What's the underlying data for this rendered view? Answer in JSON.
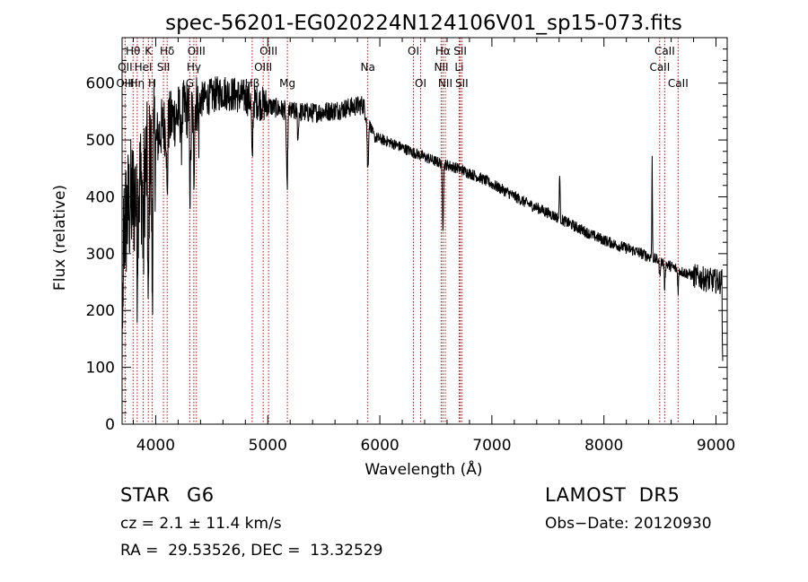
{
  "chart_data": {
    "type": "line",
    "title": "spec-56201-EG020224N124106V01_sp15-073.fits",
    "xlabel": "Wavelength (Å)",
    "ylabel": "Flux (relative)",
    "xlim": [
      3700,
      9100
    ],
    "ylim": [
      0,
      680
    ],
    "xticks": [
      4000,
      5000,
      6000,
      7000,
      8000,
      9000
    ],
    "yticks": [
      0,
      100,
      200,
      300,
      400,
      500,
      600
    ],
    "grid": false,
    "legend": "none",
    "continuum": [
      [
        3700,
        330
      ],
      [
        3760,
        380
      ],
      [
        3850,
        420
      ],
      [
        3950,
        470
      ],
      [
        4050,
        520
      ],
      [
        4200,
        545
      ],
      [
        4400,
        570
      ],
      [
        4600,
        585
      ],
      [
        4800,
        575
      ],
      [
        5000,
        560
      ],
      [
        5200,
        550
      ],
      [
        5400,
        548
      ],
      [
        5600,
        552
      ],
      [
        5850,
        562
      ],
      [
        5950,
        505
      ],
      [
        6100,
        495
      ],
      [
        6300,
        478
      ],
      [
        6500,
        462
      ],
      [
        6700,
        450
      ],
      [
        6900,
        433
      ],
      [
        7100,
        412
      ],
      [
        7300,
        390
      ],
      [
        7500,
        372
      ],
      [
        7700,
        352
      ],
      [
        7900,
        332
      ],
      [
        8100,
        316
      ],
      [
        8300,
        303
      ],
      [
        8500,
        287
      ],
      [
        8700,
        268
      ],
      [
        8900,
        255
      ],
      [
        9050,
        250
      ]
    ],
    "absorption_features": [
      {
        "x": 3835,
        "depth": 120,
        "width": 6
      },
      {
        "x": 3889,
        "depth": 150,
        "width": 6
      },
      {
        "x": 3934,
        "depth": 300,
        "width": 6
      },
      {
        "x": 3969,
        "depth": 240,
        "width": 6
      },
      {
        "x": 4102,
        "depth": 140,
        "width": 6
      },
      {
        "x": 4227,
        "depth": 60,
        "width": 5
      },
      {
        "x": 4308,
        "depth": 150,
        "width": 8
      },
      {
        "x": 4340,
        "depth": 120,
        "width": 7
      },
      {
        "x": 4384,
        "depth": 60,
        "width": 5
      },
      {
        "x": 4861,
        "depth": 120,
        "width": 7
      },
      {
        "x": 5172,
        "depth": 140,
        "width": 8
      },
      {
        "x": 5270,
        "depth": 50,
        "width": 6
      },
      {
        "x": 5893,
        "depth": 90,
        "width": 8
      },
      {
        "x": 6563,
        "depth": 110,
        "width": 7
      },
      {
        "x": 8498,
        "depth": 30,
        "width": 6
      },
      {
        "x": 8542,
        "depth": 40,
        "width": 6
      },
      {
        "x": 8662,
        "depth": 35,
        "width": 6
      }
    ],
    "emission_features": [
      {
        "x": 7605,
        "height": 85,
        "width": 5
      },
      {
        "x": 8430,
        "height": 175,
        "width": 4
      }
    ],
    "line_markers": [
      {
        "label": "Hθ",
        "x": 3798,
        "row": 0
      },
      {
        "label": "OII",
        "x": 3727,
        "row": 1
      },
      {
        "label": "OIII",
        "x": 3727,
        "row": 2
      },
      {
        "label": "Hη",
        "x": 3835,
        "row": 2
      },
      {
        "label": "HeI",
        "x": 3889,
        "row": 1
      },
      {
        "label": "K",
        "x": 3934,
        "row": 0
      },
      {
        "label": "H",
        "x": 3969,
        "row": 2
      },
      {
        "label": "SII",
        "x": 4069,
        "row": 1
      },
      {
        "label": "Hδ",
        "x": 4102,
        "row": 0
      },
      {
        "label": "OIII",
        "x": 4363,
        "row": 0
      },
      {
        "label": "Hγ",
        "x": 4340,
        "row": 1
      },
      {
        "label": "G",
        "x": 4304,
        "row": 2
      },
      {
        "label": "OIII",
        "x": 5007,
        "row": 0
      },
      {
        "label": "OIII",
        "x": 4959,
        "row": 1
      },
      {
        "label": "Hβ",
        "x": 4861,
        "row": 2
      },
      {
        "label": "Mg",
        "x": 5175,
        "row": 2
      },
      {
        "label": "Na",
        "x": 5893,
        "row": 1
      },
      {
        "label": "OI",
        "x": 6300,
        "row": 0
      },
      {
        "label": "OI",
        "x": 6364,
        "row": 2
      },
      {
        "label": "Hα",
        "x": 6563,
        "row": 0
      },
      {
        "label": "NII",
        "x": 6548,
        "row": 1
      },
      {
        "label": "NII",
        "x": 6584,
        "row": 2
      },
      {
        "label": "SII",
        "x": 6717,
        "row": 0
      },
      {
        "label": "Li",
        "x": 6708,
        "row": 1
      },
      {
        "label": "SII",
        "x": 6731,
        "row": 2
      },
      {
        "label": "CaII",
        "x": 8542,
        "row": 0
      },
      {
        "label": "CaII",
        "x": 8498,
        "row": 1
      },
      {
        "label": "CaII",
        "x": 8662,
        "row": 2
      }
    ],
    "marker_lines": [
      3727,
      3798,
      3835,
      3889,
      3934,
      3969,
      4069,
      4102,
      4304,
      4340,
      4363,
      4861,
      4959,
      5007,
      5175,
      5893,
      6300,
      6364,
      6548,
      6563,
      6584,
      6708,
      6717,
      6731,
      8498,
      8542,
      8662
    ]
  },
  "info": {
    "object_class": "STAR",
    "subclass": "G6",
    "survey": "LAMOST  DR5",
    "cz": "cz = 2.1 ± 11.4 km/s",
    "obs_date": "Obs−Date: 20120930",
    "coords": "RA =  29.53526, DEC =  13.32529"
  }
}
